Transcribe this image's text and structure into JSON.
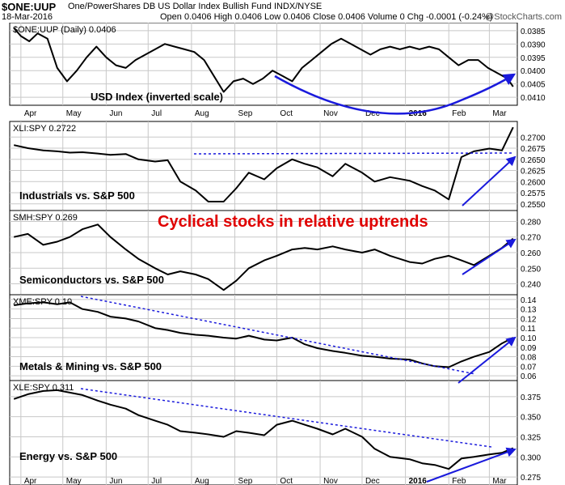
{
  "header": {
    "symbol": "$ONE:UUP",
    "name": "One/PowerShares DB US Dollar Index Bullish Fund INDX/NYSE",
    "date": "18-Mar-2016",
    "ohlc": "Open 0.0406  High 0.0406  Low 0.0406  Close 0.0406  Volume 0  Chg -0.0001 (-0.24%)",
    "watermark": "@StockCharts.com"
  },
  "colors": {
    "price_line": "#000000",
    "annotation_red": "#e00000",
    "annotation_blue": "#1a1adc",
    "grid": "#c8c8c8"
  },
  "chart_data": [
    {
      "type": "line",
      "legend": "$ONE:UUP (Daily) 0.0406",
      "title": "USD Index (inverted scale)",
      "y_scale": "inverted",
      "ylim": [
        0.0382,
        0.0413
      ],
      "y_ticks": [
        "0.0410",
        "0.0405",
        "0.0400",
        "0.0395",
        "0.0390",
        "0.0385"
      ],
      "x_ticks": [
        "Apr",
        "May",
        "Jun",
        "Jul",
        "Aug",
        "Sep",
        "Oct",
        "Nov",
        "Dec",
        "2016",
        "Feb",
        "Mar"
      ],
      "dates": [
        "2015-03-27",
        "2015-04-01",
        "2015-04-07",
        "2015-04-13",
        "2015-04-20",
        "2015-04-27",
        "2015-05-04",
        "2015-05-11",
        "2015-05-18",
        "2015-05-25",
        "2015-06-01",
        "2015-06-08",
        "2015-06-15",
        "2015-06-22",
        "2015-06-29",
        "2015-07-06",
        "2015-07-13",
        "2015-07-20",
        "2015-07-27",
        "2015-08-03",
        "2015-08-10",
        "2015-08-17",
        "2015-08-24",
        "2015-08-31",
        "2015-09-07",
        "2015-09-14",
        "2015-09-21",
        "2015-09-28",
        "2015-10-05",
        "2015-10-12",
        "2015-10-19",
        "2015-10-26",
        "2015-11-02",
        "2015-11-09",
        "2015-11-16",
        "2015-11-23",
        "2015-11-30",
        "2015-12-07",
        "2015-12-14",
        "2015-12-21",
        "2015-12-28",
        "2016-01-04",
        "2016-01-11",
        "2016-01-18",
        "2016-01-25",
        "2016-02-01",
        "2016-02-08",
        "2016-02-15",
        "2016-02-22",
        "2016-02-29",
        "2016-03-07",
        "2016-03-14",
        "2016-03-18"
      ],
      "values": [
        0.0384,
        0.0387,
        0.0389,
        0.0386,
        0.0388,
        0.0399,
        0.0404,
        0.04,
        0.0395,
        0.0391,
        0.0395,
        0.0398,
        0.0399,
        0.0396,
        0.0394,
        0.0392,
        0.039,
        0.0391,
        0.0392,
        0.0393,
        0.0396,
        0.0402,
        0.0408,
        0.0404,
        0.0403,
        0.0405,
        0.0403,
        0.04,
        0.0402,
        0.0404,
        0.0399,
        0.0396,
        0.0393,
        0.039,
        0.0388,
        0.039,
        0.0392,
        0.0394,
        0.0392,
        0.0391,
        0.0392,
        0.0391,
        0.0392,
        0.0391,
        0.0392,
        0.0395,
        0.0398,
        0.0396,
        0.0396,
        0.0399,
        0.0401,
        0.0403,
        0.0406
      ],
      "annotations": [
        {
          "type": "curved-arrow",
          "color": "blue",
          "note": "U-shaped arc ending in an up arrow"
        }
      ]
    },
    {
      "type": "line",
      "legend": "XLI:SPY 0.2722",
      "title": "Industrials vs. S&P 500",
      "ylim": [
        0.2535,
        0.2735
      ],
      "y_ticks": [
        "0.2700",
        "0.2675",
        "0.2650",
        "0.2625",
        "0.2600",
        "0.2575",
        "0.2550"
      ],
      "dates": [
        "2015-03-27",
        "2015-04-06",
        "2015-04-17",
        "2015-04-27",
        "2015-05-06",
        "2015-05-15",
        "2015-05-26",
        "2015-06-04",
        "2015-06-15",
        "2015-06-24",
        "2015-07-06",
        "2015-07-15",
        "2015-07-24",
        "2015-08-04",
        "2015-08-13",
        "2015-08-24",
        "2015-09-02",
        "2015-09-11",
        "2015-09-22",
        "2015-10-01",
        "2015-10-12",
        "2015-10-21",
        "2015-10-30",
        "2015-11-10",
        "2015-11-19",
        "2015-12-01",
        "2015-12-10",
        "2015-12-21",
        "2016-01-04",
        "2016-01-13",
        "2016-01-22",
        "2016-02-01",
        "2016-02-10",
        "2016-02-19",
        "2016-03-01",
        "2016-03-10",
        "2016-03-18"
      ],
      "values": [
        0.2682,
        0.2675,
        0.267,
        0.2668,
        0.2665,
        0.2666,
        0.2663,
        0.266,
        0.2662,
        0.265,
        0.2645,
        0.2648,
        0.26,
        0.258,
        0.2555,
        0.2555,
        0.2585,
        0.262,
        0.2605,
        0.263,
        0.265,
        0.264,
        0.2632,
        0.2612,
        0.264,
        0.262,
        0.26,
        0.261,
        0.2602,
        0.259,
        0.258,
        0.256,
        0.2655,
        0.2668,
        0.2674,
        0.267,
        0.2722
      ],
      "annotations": [
        {
          "type": "dashed-line",
          "color": "blue"
        },
        {
          "type": "arrow",
          "color": "blue"
        }
      ]
    },
    {
      "type": "line",
      "legend": "SMH:SPY 0.269",
      "title": "Semiconductors vs. S&P 500",
      "ylim": [
        0.233,
        0.287
      ],
      "y_ticks": [
        "0.280",
        "0.270",
        "0.260",
        "0.250",
        "0.240"
      ],
      "dates": [
        "2015-03-27",
        "2015-04-06",
        "2015-04-17",
        "2015-04-27",
        "2015-05-06",
        "2015-05-15",
        "2015-05-26",
        "2015-06-04",
        "2015-06-15",
        "2015-06-24",
        "2015-07-06",
        "2015-07-15",
        "2015-07-24",
        "2015-08-04",
        "2015-08-13",
        "2015-08-24",
        "2015-09-02",
        "2015-09-11",
        "2015-09-22",
        "2015-10-01",
        "2015-10-12",
        "2015-10-21",
        "2015-10-30",
        "2015-11-10",
        "2015-11-19",
        "2015-12-01",
        "2015-12-10",
        "2015-12-21",
        "2016-01-04",
        "2016-01-13",
        "2016-01-22",
        "2016-02-01",
        "2016-02-10",
        "2016-02-19",
        "2016-03-01",
        "2016-03-10",
        "2016-03-18"
      ],
      "values": [
        0.27,
        0.272,
        0.265,
        0.267,
        0.27,
        0.275,
        0.278,
        0.27,
        0.262,
        0.256,
        0.25,
        0.246,
        0.248,
        0.246,
        0.243,
        0.236,
        0.242,
        0.25,
        0.255,
        0.258,
        0.262,
        0.263,
        0.262,
        0.264,
        0.262,
        0.26,
        0.262,
        0.258,
        0.254,
        0.253,
        0.256,
        0.258,
        0.255,
        0.252,
        0.258,
        0.263,
        0.269
      ],
      "annotations": [
        {
          "type": "arrow",
          "color": "blue"
        }
      ]
    },
    {
      "type": "line",
      "legend": "XME:SPY 0.10",
      "title": "Metals & Mining vs. S&P 500",
      "ylim": [
        0.055,
        0.145
      ],
      "y_ticks": [
        "0.14",
        "0.13",
        "0.12",
        "0.11",
        "0.10",
        "0.09",
        "0.08",
        "0.07",
        "0.06"
      ],
      "dates": [
        "2015-03-27",
        "2015-04-06",
        "2015-04-17",
        "2015-04-27",
        "2015-05-06",
        "2015-05-15",
        "2015-05-26",
        "2015-06-04",
        "2015-06-15",
        "2015-06-24",
        "2015-07-06",
        "2015-07-15",
        "2015-07-24",
        "2015-08-04",
        "2015-08-13",
        "2015-08-24",
        "2015-09-02",
        "2015-09-11",
        "2015-09-22",
        "2015-10-01",
        "2015-10-12",
        "2015-10-21",
        "2015-10-30",
        "2015-11-10",
        "2015-11-19",
        "2015-12-01",
        "2015-12-10",
        "2015-12-21",
        "2016-01-04",
        "2016-01-13",
        "2016-01-22",
        "2016-02-01",
        "2016-02-10",
        "2016-02-19",
        "2016-03-01",
        "2016-03-10",
        "2016-03-18"
      ],
      "values": [
        0.134,
        0.136,
        0.137,
        0.135,
        0.137,
        0.13,
        0.127,
        0.122,
        0.12,
        0.117,
        0.11,
        0.108,
        0.105,
        0.103,
        0.102,
        0.1,
        0.099,
        0.102,
        0.098,
        0.097,
        0.1,
        0.093,
        0.089,
        0.086,
        0.084,
        0.081,
        0.08,
        0.078,
        0.077,
        0.073,
        0.07,
        0.069,
        0.075,
        0.08,
        0.085,
        0.094,
        0.1
      ],
      "annotations": [
        {
          "type": "dashed-line",
          "color": "blue"
        },
        {
          "type": "arrow",
          "color": "blue"
        }
      ]
    },
    {
      "type": "line",
      "legend": "XLE:SPY 0.311",
      "title": "Energy vs. S&P 500",
      "ylim": [
        0.265,
        0.395
      ],
      "y_ticks": [
        "0.375",
        "0.350",
        "0.325",
        "0.300",
        "0.275"
      ],
      "dates": [
        "2015-03-27",
        "2015-04-06",
        "2015-04-17",
        "2015-04-27",
        "2015-05-06",
        "2015-05-15",
        "2015-05-26",
        "2015-06-04",
        "2015-06-15",
        "2015-06-24",
        "2015-07-06",
        "2015-07-15",
        "2015-07-24",
        "2015-08-04",
        "2015-08-13",
        "2015-08-24",
        "2015-09-02",
        "2015-09-11",
        "2015-09-22",
        "2015-10-01",
        "2015-10-12",
        "2015-10-21",
        "2015-10-30",
        "2015-11-10",
        "2015-11-19",
        "2015-12-01",
        "2015-12-10",
        "2015-12-21",
        "2016-01-04",
        "2016-01-13",
        "2016-01-22",
        "2016-02-01",
        "2016-02-10",
        "2016-02-19",
        "2016-03-01",
        "2016-03-10",
        "2016-03-18"
      ],
      "values": [
        0.372,
        0.378,
        0.382,
        0.383,
        0.38,
        0.377,
        0.37,
        0.365,
        0.36,
        0.352,
        0.345,
        0.34,
        0.332,
        0.33,
        0.328,
        0.325,
        0.332,
        0.33,
        0.327,
        0.34,
        0.345,
        0.34,
        0.335,
        0.328,
        0.335,
        0.325,
        0.31,
        0.3,
        0.297,
        0.292,
        0.29,
        0.285,
        0.298,
        0.3,
        0.303,
        0.305,
        0.311
      ],
      "annotations": [
        {
          "type": "dashed-line",
          "color": "blue"
        },
        {
          "type": "arrow",
          "color": "blue"
        }
      ]
    }
  ],
  "overlay_text": "Cyclical stocks in relative uptrends"
}
